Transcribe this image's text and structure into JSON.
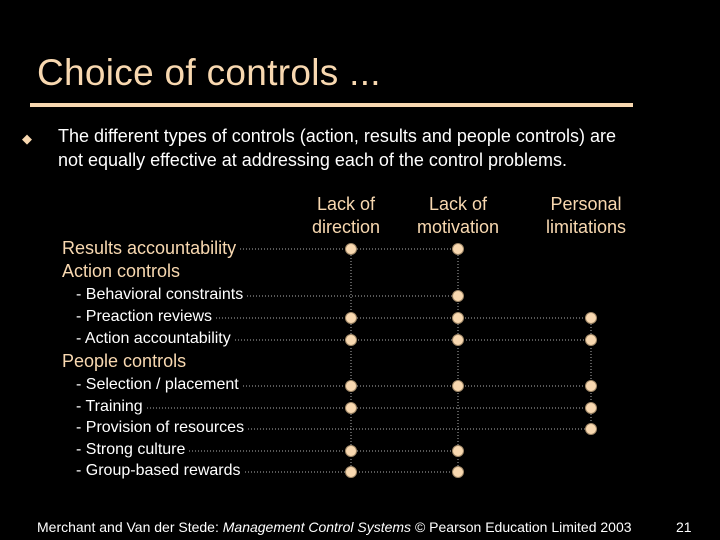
{
  "title": "Choice of controls ...",
  "bullet": {
    "icon": "diamond-bullet-icon",
    "text": "The different types of controls (action, results and people controls) are not equally effective at addressing each of the control problems."
  },
  "columns": [
    {
      "line1": "Lack of",
      "line2": "direction"
    },
    {
      "line1": "Lack of",
      "line2": "motivation"
    },
    {
      "line1": "Personal",
      "line2": "limitations"
    }
  ],
  "rows": [
    {
      "label": "Results accountability",
      "level": "main",
      "marks": [
        true,
        true,
        false
      ]
    },
    {
      "label": "Action controls",
      "level": "main",
      "marks": [
        false,
        false,
        false
      ]
    },
    {
      "label": "- Behavioral constraints",
      "level": "sub",
      "marks": [
        false,
        true,
        false
      ]
    },
    {
      "label": "- Preaction reviews",
      "level": "sub",
      "marks": [
        true,
        true,
        true
      ]
    },
    {
      "label": "- Action accountability",
      "level": "sub",
      "marks": [
        true,
        true,
        true
      ]
    },
    {
      "label": "People controls",
      "level": "main",
      "marks": [
        false,
        false,
        false
      ]
    },
    {
      "label": "- Selection / placement",
      "level": "sub",
      "marks": [
        true,
        true,
        true
      ]
    },
    {
      "label": "- Training",
      "level": "sub",
      "marks": [
        true,
        false,
        true
      ]
    },
    {
      "label": "- Provision of resources",
      "level": "sub",
      "marks": [
        false,
        false,
        true
      ]
    },
    {
      "label": "- Strong culture",
      "level": "sub",
      "marks": [
        true,
        true,
        false
      ]
    },
    {
      "label": "- Group-based rewards",
      "level": "sub",
      "marks": [
        true,
        true,
        false
      ]
    }
  ],
  "footer": {
    "prefix": "Merchant and Van der Stede: ",
    "book": "Management Control Systems",
    "suffix": " © Pearson Education Limited 2003"
  },
  "page_number": "21",
  "colors": {
    "title": "#f8d8b0",
    "rule": "#f8d8b0",
    "dot": "#f8d8b0",
    "dot_stroke": "#a08868",
    "guide": "#b0b0b0",
    "background": "#000000"
  }
}
